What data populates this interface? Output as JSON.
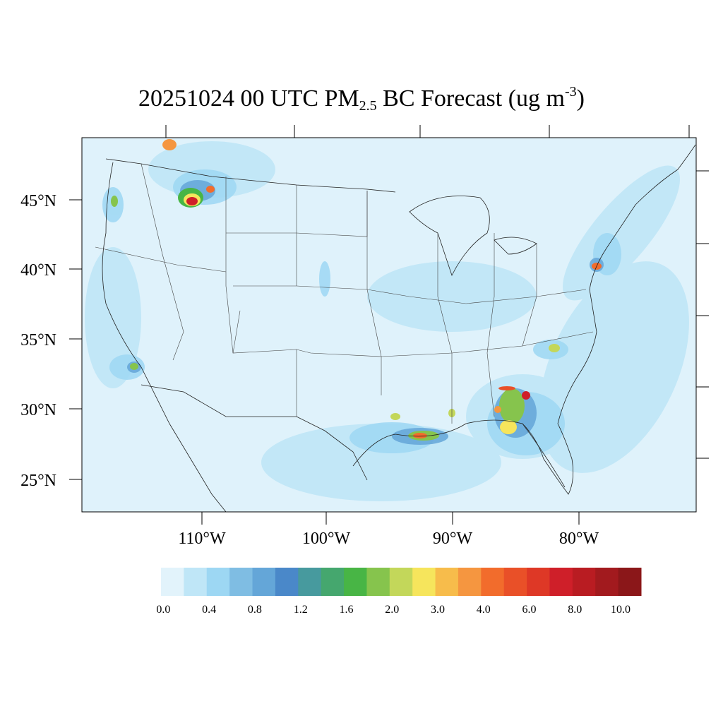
{
  "title": {
    "pre": "20251024 00 UTC PM",
    "sub": "2.5",
    "mid": " BC Forecast (ug m",
    "sup": "-3",
    "post": ")"
  },
  "map": {
    "background_color": "#dff2fb",
    "lat_labels": [
      "45°N",
      "40°N",
      "35°N",
      "30°N",
      "25°N"
    ],
    "lon_labels": [
      "110°W",
      "100°W",
      "90°W",
      "80°W"
    ]
  },
  "colorbar": {
    "colors": [
      "#e2f3fb",
      "#bfe6f7",
      "#9dd7f3",
      "#7fbde3",
      "#64a6d8",
      "#4a88c9",
      "#479a9e",
      "#45a76e",
      "#48b545",
      "#86c44d",
      "#c3d75a",
      "#f6e55c",
      "#f7bc4b",
      "#f59640",
      "#f26c2c",
      "#e95028",
      "#de3826",
      "#cf1f29",
      "#b91c22",
      "#a21a1e",
      "#8b1719"
    ],
    "labels": [
      "0.0",
      "0.4",
      "0.8",
      "1.2",
      "1.6",
      "2.0",
      "3.0",
      "4.0",
      "6.0",
      "8.0",
      "10.0"
    ]
  }
}
